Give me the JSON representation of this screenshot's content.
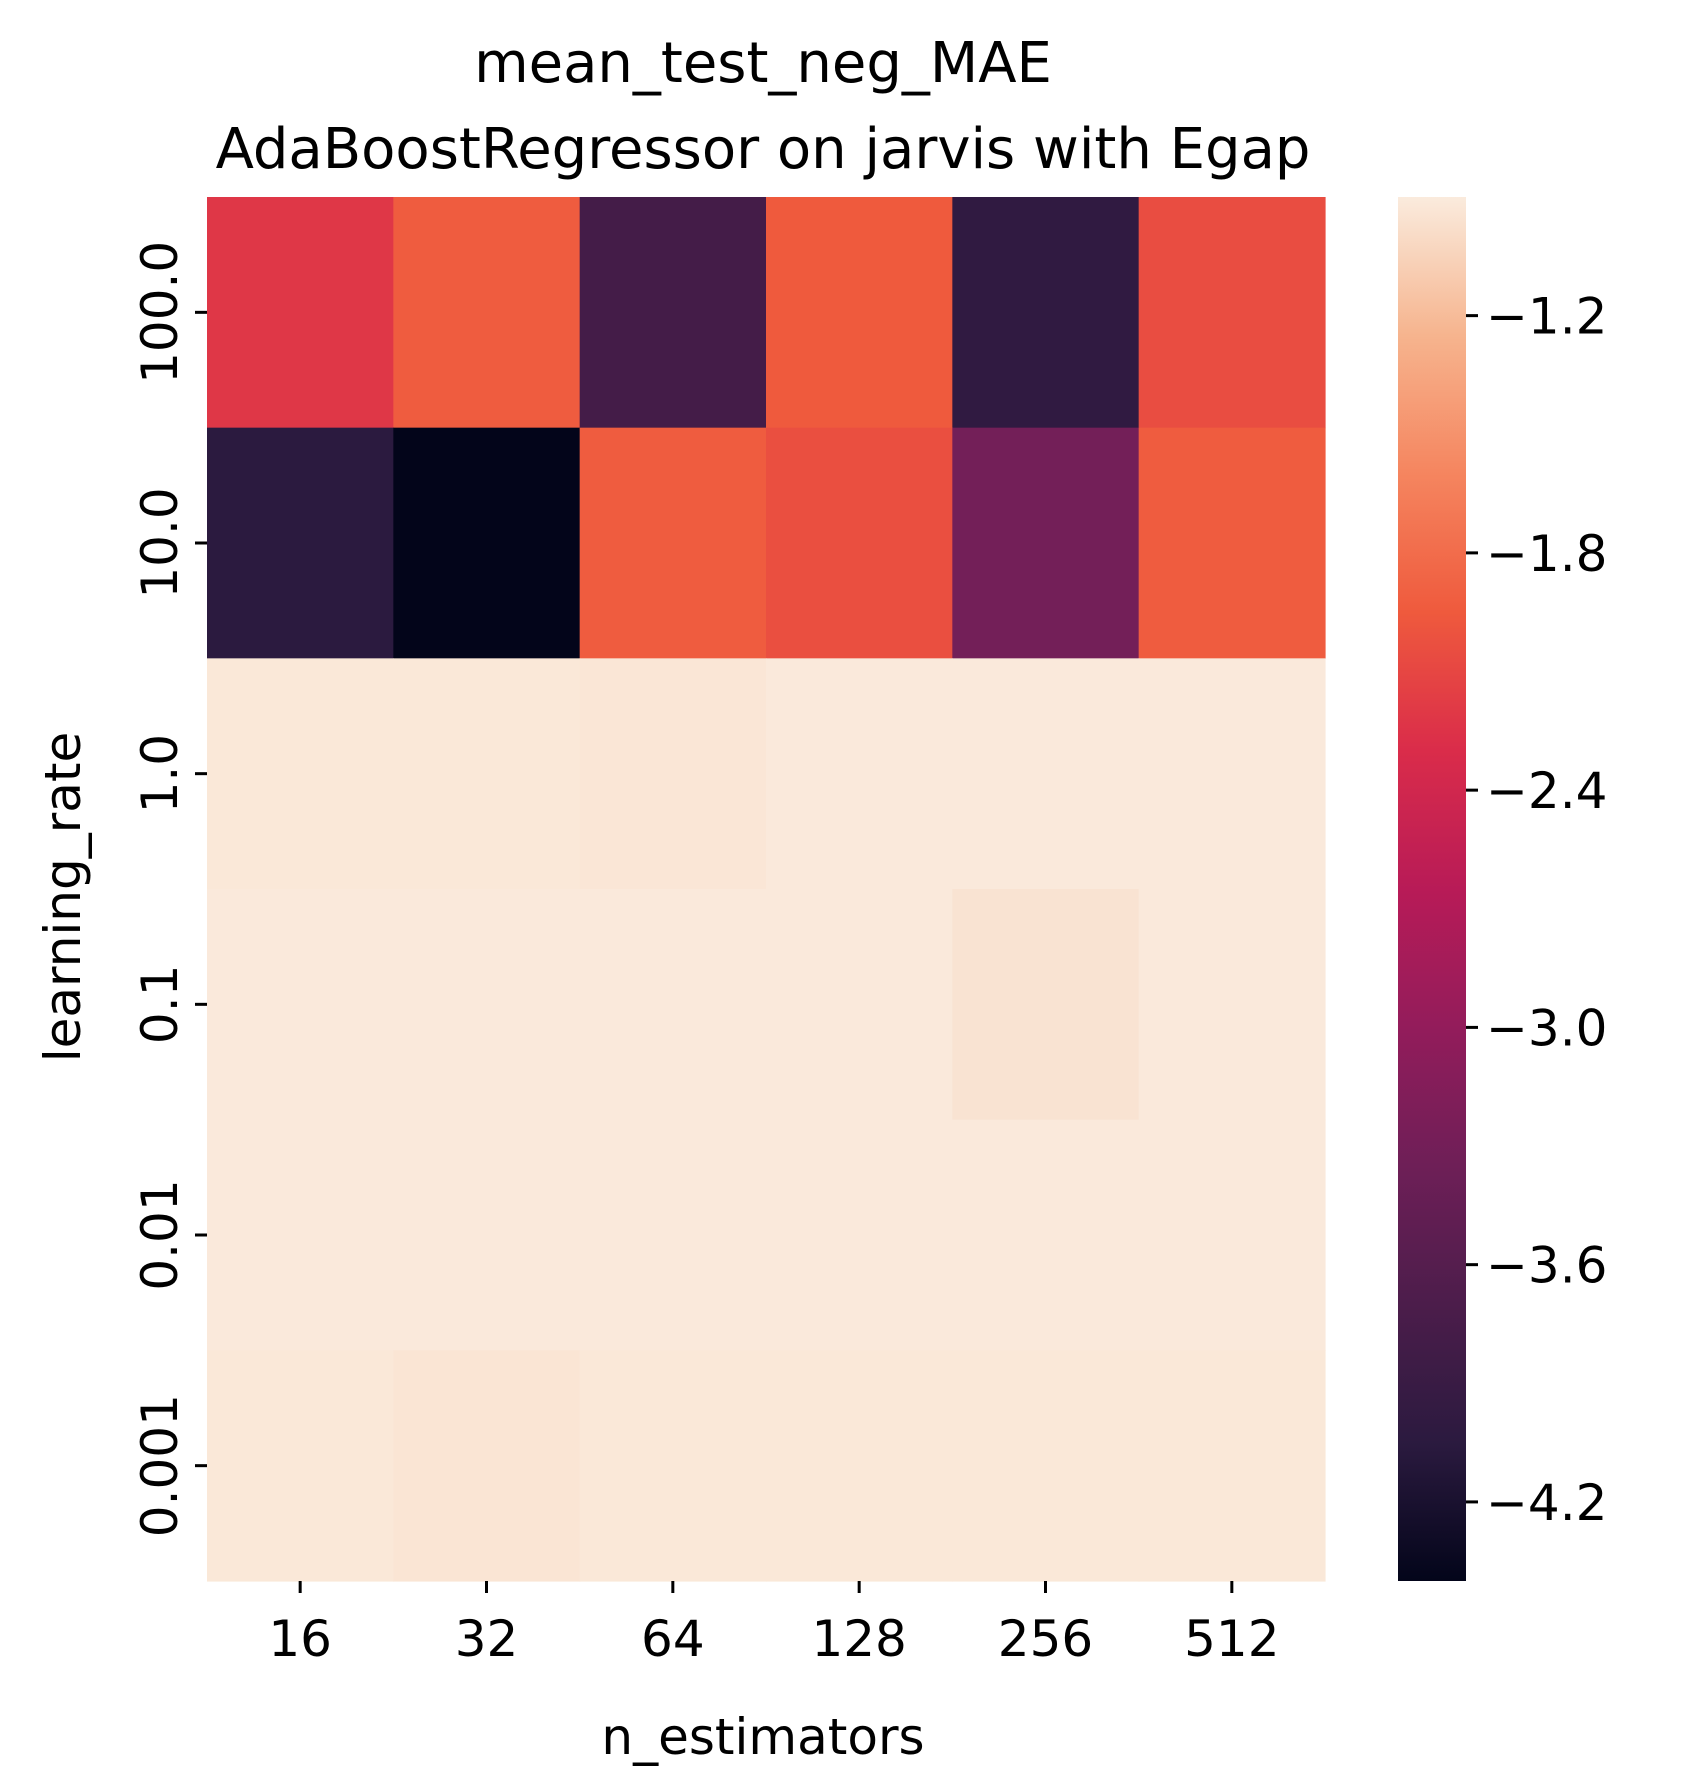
{
  "chart_data": {
    "type": "heatmap",
    "title": [
      "mean_test_neg_MAE",
      "AdaBoostRegressor on jarvis with Egap"
    ],
    "xlabel": "n_estimators",
    "ylabel": "learning_rate",
    "x_categories": [
      "16",
      "32",
      "64",
      "128",
      "256",
      "512"
    ],
    "y_categories": [
      "100.0",
      "10.0",
      "1.0",
      "0.1",
      "0.01",
      "0.001"
    ],
    "values": [
      [
        -2.22,
        -1.93,
        -3.78,
        -1.95,
        -4.0,
        -2.05
      ],
      [
        -4.05,
        -4.4,
        -1.93,
        -2.03,
        -3.3,
        -1.93
      ],
      [
        -0.92,
        -0.92,
        -0.93,
        -0.91,
        -0.91,
        -0.91
      ],
      [
        -0.91,
        -0.91,
        -0.91,
        -0.91,
        -0.95,
        -0.91
      ],
      [
        -0.91,
        -0.91,
        -0.91,
        -0.91,
        -0.91,
        -0.91
      ],
      [
        -0.92,
        -0.94,
        -0.92,
        -0.92,
        -0.92,
        -0.92
      ]
    ],
    "colorbar": {
      "colormap": "rocket",
      "vmin": -4.4,
      "vmax": -0.9,
      "ticks": [
        "−1.2",
        "−1.8",
        "−2.4",
        "−3.0",
        "−3.6",
        "−4.2"
      ],
      "tick_values": [
        -1.2,
        -1.8,
        -2.4,
        -3.0,
        -3.6,
        -4.2
      ]
    },
    "grid": false,
    "legend": "colorbar-right"
  }
}
